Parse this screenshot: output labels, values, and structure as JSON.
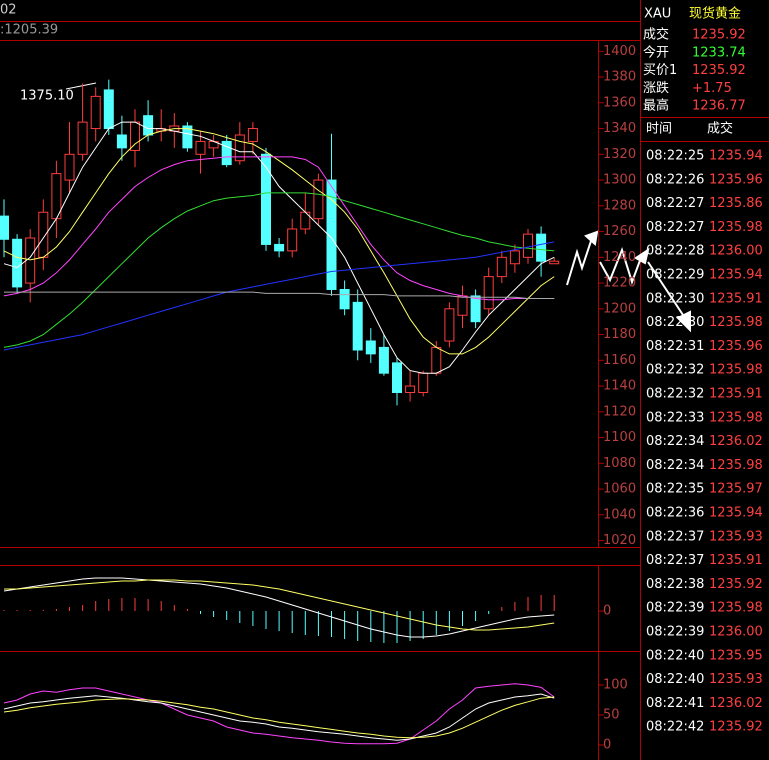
{
  "chart_data": [
    {
      "type": "candlestick",
      "texts": [
        "02",
        ":1205.39",
        "1375.10"
      ],
      "open": [
        1272,
        1254,
        1220,
        1240,
        1270,
        1300,
        1320,
        1340,
        1370,
        1335,
        1323,
        1350,
        1338,
        1338,
        1342,
        1320,
        1325,
        1330,
        1315,
        1330,
        1320,
        1250,
        1245,
        1262,
        1270,
        1300,
        1215,
        1205,
        1175,
        1170,
        1158,
        1135,
        1135,
        1150,
        1175,
        1195,
        1210,
        1200,
        1225,
        1235,
        1240,
        1258,
        1235
      ],
      "high": [
        1285,
        1258,
        1262,
        1285,
        1315,
        1345,
        1375,
        1372,
        1378,
        1350,
        1355,
        1362,
        1355,
        1352,
        1345,
        1338,
        1335,
        1335,
        1345,
        1345,
        1325,
        1255,
        1270,
        1290,
        1305,
        1336,
        1222,
        1215,
        1185,
        1180,
        1162,
        1152,
        1152,
        1175,
        1205,
        1218,
        1215,
        1232,
        1245,
        1250,
        1262,
        1264,
        1240
      ],
      "low": [
        1240,
        1212,
        1205,
        1230,
        1255,
        1290,
        1315,
        1330,
        1335,
        1315,
        1310,
        1330,
        1330,
        1325,
        1322,
        1305,
        1318,
        1310,
        1312,
        1320,
        1245,
        1240,
        1240,
        1258,
        1265,
        1210,
        1195,
        1160,
        1158,
        1148,
        1125,
        1128,
        1132,
        1148,
        1170,
        1185,
        1185,
        1195,
        1220,
        1228,
        1235,
        1225,
        1235
      ],
      "close": [
        1254,
        1217,
        1255,
        1275,
        1305,
        1320,
        1345,
        1365,
        1340,
        1325,
        1345,
        1335,
        1340,
        1342,
        1325,
        1330,
        1330,
        1312,
        1335,
        1340,
        1250,
        1245,
        1262,
        1275,
        1300,
        1215,
        1200,
        1168,
        1165,
        1150,
        1135,
        1140,
        1150,
        1170,
        1200,
        1210,
        1190,
        1225,
        1240,
        1245,
        1258,
        1237,
        1237
      ],
      "up_color": "#ff3c3c",
      "down_color": "#54ffff",
      "series": [
        {
          "color": "#ffffff",
          "values": [
            1235,
            1232,
            1240,
            1255,
            1270,
            1290,
            1310,
            1325,
            1340,
            1345,
            1345,
            1340,
            1340,
            1338,
            1336,
            1334,
            1330,
            1326,
            1322,
            1322,
            1310,
            1295,
            1285,
            1275,
            1265,
            1255,
            1240,
            1220,
            1200,
            1180,
            1162,
            1152,
            1150,
            1150,
            1155,
            1168,
            1182,
            1195,
            1205,
            1215,
            1225,
            1235,
            1240
          ]
        },
        {
          "color": "#ffff66",
          "values": [
            1245,
            1240,
            1238,
            1240,
            1248,
            1260,
            1275,
            1290,
            1305,
            1318,
            1328,
            1335,
            1338,
            1340,
            1340,
            1338,
            1336,
            1333,
            1330,
            1328,
            1322,
            1315,
            1308,
            1300,
            1292,
            1285,
            1275,
            1262,
            1245,
            1228,
            1210,
            1192,
            1178,
            1170,
            1165,
            1165,
            1170,
            1178,
            1188,
            1198,
            1208,
            1218,
            1225
          ]
        },
        {
          "color": "#ff44ff",
          "values": [
            1210,
            1212,
            1215,
            1220,
            1228,
            1238,
            1250,
            1262,
            1275,
            1285,
            1295,
            1302,
            1308,
            1312,
            1315,
            1316,
            1317,
            1318,
            1318,
            1318,
            1318,
            1318,
            1318,
            1316,
            1310,
            1295,
            1280,
            1265,
            1250,
            1238,
            1228,
            1222,
            1218,
            1215,
            1212,
            1210,
            1208,
            1207,
            1207,
            1208,
            1208,
            1208,
            1208
          ]
        },
        {
          "color": "#33dd33",
          "values": [
            1170,
            1172,
            1175,
            1180,
            1188,
            1196,
            1205,
            1215,
            1225,
            1235,
            1245,
            1255,
            1263,
            1270,
            1276,
            1280,
            1284,
            1286,
            1287,
            1288,
            1290,
            1290,
            1290,
            1290,
            1289,
            1287,
            1284,
            1281,
            1278,
            1275,
            1272,
            1269,
            1266,
            1263,
            1260,
            1257,
            1255,
            1252,
            1250,
            1248,
            1247,
            1246,
            1245
          ]
        },
        {
          "color": "#2233ff",
          "values": [
            1168,
            1170,
            1172,
            1174,
            1176,
            1178,
            1180,
            1183,
            1186,
            1189,
            1192,
            1195,
            1198,
            1201,
            1204,
            1207,
            1210,
            1213,
            1215,
            1217,
            1219,
            1221,
            1223,
            1225,
            1227,
            1229,
            1230,
            1231,
            1232,
            1233,
            1234,
            1235,
            1236,
            1237,
            1238,
            1239,
            1240,
            1242,
            1244,
            1246,
            1248,
            1250,
            1252
          ]
        },
        {
          "color": "#aaaaaa",
          "values": [
            1213,
            1213,
            1213,
            1213,
            1213,
            1213,
            1213,
            1213,
            1213,
            1213,
            1213,
            1213,
            1213,
            1213,
            1213,
            1213,
            1213,
            1213,
            1213,
            1213,
            1212,
            1212,
            1212,
            1212,
            1212,
            1211,
            1211,
            1211,
            1211,
            1211,
            1210,
            1210,
            1210,
            1210,
            1210,
            1209,
            1209,
            1209,
            1209,
            1209,
            1208,
            1208,
            1208
          ]
        }
      ],
      "ylim": [
        1015,
        1408
      ],
      "yticks": [
        1020,
        1040,
        1060,
        1080,
        1100,
        1120,
        1140,
        1160,
        1180,
        1200,
        1220,
        1240,
        1260,
        1280,
        1300,
        1320,
        1340,
        1360,
        1380,
        1400
      ]
    },
    {
      "type": "macd",
      "values": [
        1,
        1,
        1,
        1,
        2,
        4,
        6,
        10,
        12,
        13,
        13,
        12,
        10,
        6,
        2,
        -3,
        -6,
        -9,
        -12,
        -15,
        -18,
        -20,
        -22,
        -24,
        -25,
        -26,
        -28,
        -30,
        -31,
        -32,
        -32,
        -30,
        -28,
        -24,
        -20,
        -15,
        -10,
        -3,
        4,
        9,
        14,
        16,
        16
      ],
      "up_color": "#ff3c3c",
      "down_color": "#54ffff",
      "series": [
        {
          "color": "#ffffff",
          "values": [
            20,
            22,
            24,
            26,
            28,
            30,
            32,
            33,
            33,
            33,
            32,
            31,
            30,
            29,
            28,
            27,
            25,
            23,
            20,
            17,
            14,
            10,
            6,
            2,
            -2,
            -6,
            -10,
            -14,
            -18,
            -21,
            -24,
            -26,
            -26,
            -25,
            -23,
            -20,
            -17,
            -14,
            -11,
            -8,
            -6,
            -5,
            -4
          ]
        },
        {
          "color": "#ffff66",
          "values": [
            22,
            22,
            23,
            24,
            25,
            26,
            27,
            28,
            29,
            30,
            30,
            31,
            31,
            31,
            30,
            30,
            29,
            28,
            27,
            26,
            24,
            22,
            19,
            16,
            13,
            10,
            7,
            4,
            1,
            -2,
            -5,
            -8,
            -11,
            -14,
            -16,
            -18,
            -19,
            -19,
            -18,
            -17,
            -16,
            -14,
            -12
          ]
        }
      ],
      "ylim": [
        -40,
        40
      ],
      "yticks": [
        0
      ]
    },
    {
      "type": "line",
      "series": [
        {
          "color": "#ff44ff",
          "values": [
            70,
            75,
            85,
            90,
            88,
            92,
            95,
            95,
            90,
            85,
            80,
            75,
            70,
            60,
            50,
            45,
            40,
            30,
            25,
            20,
            18,
            15,
            12,
            10,
            8,
            5,
            3,
            2,
            2,
            2,
            3,
            10,
            25,
            40,
            60,
            75,
            95,
            98,
            100,
            102,
            100,
            96,
            80
          ]
        },
        {
          "color": "#ffffff",
          "values": [
            60,
            65,
            70,
            72,
            75,
            78,
            80,
            82,
            80,
            78,
            75,
            72,
            70,
            65,
            60,
            55,
            50,
            45,
            40,
            38,
            35,
            30,
            28,
            25,
            22,
            20,
            18,
            15,
            12,
            10,
            8,
            10,
            15,
            20,
            30,
            45,
            60,
            70,
            75,
            80,
            82,
            85,
            78
          ]
        },
        {
          "color": "#ffff66",
          "values": [
            55,
            58,
            62,
            65,
            68,
            70,
            72,
            75,
            76,
            77,
            76,
            75,
            73,
            70,
            67,
            63,
            60,
            55,
            50,
            45,
            42,
            38,
            35,
            32,
            29,
            26,
            23,
            20,
            18,
            15,
            13,
            12,
            13,
            15,
            20,
            28,
            38,
            48,
            58,
            66,
            72,
            78,
            80
          ]
        }
      ],
      "ylim": [
        -20,
        140
      ],
      "yticks": [
        0,
        50,
        100
      ]
    }
  ],
  "quote": {
    "symbol": "XAU",
    "name": "现货黄金",
    "rows": [
      {
        "label": "成交",
        "value": "1235.92",
        "color": "#ff4040"
      },
      {
        "label": "今开",
        "value": "1233.74",
        "color": "#33ff33"
      },
      {
        "label": "买价1",
        "value": "1235.92",
        "color": "#ff4040"
      },
      {
        "label": "涨跌",
        "value": "+1.75",
        "color": "#ff4040"
      },
      {
        "label": "最高",
        "value": "1236.77",
        "color": "#ff4040"
      }
    ]
  },
  "ticks": {
    "header": [
      "时间",
      "成交"
    ],
    "rows": [
      [
        "08:22:25",
        "1235.94"
      ],
      [
        "08:22:26",
        "1235.96"
      ],
      [
        "08:22:27",
        "1235.86"
      ],
      [
        "08:22:27",
        "1235.98"
      ],
      [
        "08:22:28",
        "1236.00"
      ],
      [
        "08:22:29",
        "1235.94"
      ],
      [
        "08:22:30",
        "1235.91"
      ],
      [
        "08:22:30",
        "1235.98"
      ],
      [
        "08:22:31",
        "1235.96"
      ],
      [
        "08:22:32",
        "1235.98"
      ],
      [
        "08:22:32",
        "1235.91"
      ],
      [
        "08:22:33",
        "1235.98"
      ],
      [
        "08:22:34",
        "1236.02"
      ],
      [
        "08:22:34",
        "1235.98"
      ],
      [
        "08:22:35",
        "1235.97"
      ],
      [
        "08:22:36",
        "1235.94"
      ],
      [
        "08:22:37",
        "1235.93"
      ],
      [
        "08:22:37",
        "1235.91"
      ],
      [
        "08:22:38",
        "1235.92"
      ],
      [
        "08:22:39",
        "1235.98"
      ],
      [
        "08:22:39",
        "1236.00"
      ],
      [
        "08:22:40",
        "1235.95"
      ],
      [
        "08:22:40",
        "1235.93"
      ],
      [
        "08:22:41",
        "1236.02"
      ],
      [
        "08:22:42",
        "1235.92"
      ]
    ]
  }
}
